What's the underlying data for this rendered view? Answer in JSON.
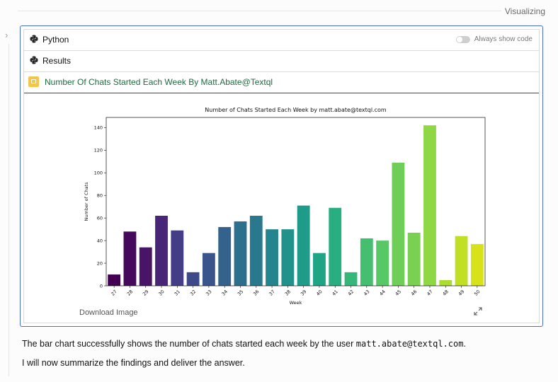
{
  "header": {
    "status": "Visualizing"
  },
  "panel": {
    "python_label": "Python",
    "results_label": "Results",
    "toggle_label": "Always show code",
    "chart_link_title": "Number Of Chats Started Each Week By Matt.Abate@Textql",
    "download_label": "Download Image"
  },
  "summary": {
    "line1_prefix": "The bar chart successfully shows the number of chats started each week by the user ",
    "line1_code": "matt.abate@textql.com",
    "line1_suffix": ".",
    "line2": "I will now summarize the findings and deliver the answer."
  },
  "chart_data": {
    "type": "bar",
    "title": "Number of Chats Started Each Week by matt.abate@textql.com",
    "xlabel": "Week",
    "ylabel": "Number of Chats",
    "categories": [
      "27",
      "28",
      "29",
      "30",
      "31",
      "32",
      "33",
      "34",
      "35",
      "36",
      "37",
      "38",
      "39",
      "40",
      "41",
      "42",
      "43",
      "44",
      "45",
      "46",
      "47",
      "48",
      "49",
      "50"
    ],
    "values": [
      10,
      48,
      34,
      62,
      49,
      12,
      29,
      52,
      57,
      62,
      50,
      50,
      71,
      29,
      69,
      12,
      42,
      40,
      109,
      47,
      142,
      5,
      44,
      37
    ],
    "ylim": [
      0,
      149
    ],
    "yticks": [
      0,
      20,
      40,
      60,
      80,
      100,
      120,
      140
    ],
    "colormap": "viridis",
    "colors": [
      "#440154",
      "#46085c",
      "#481467",
      "#482576",
      "#433e85",
      "#3e4989",
      "#39558c",
      "#33628d",
      "#2d708e",
      "#2a788e",
      "#25858e",
      "#21918c",
      "#1e9c89",
      "#20a486",
      "#28ae80",
      "#35b779",
      "#44bf70",
      "#58c765",
      "#6ece58",
      "#7ad151",
      "#8fd744",
      "#aadc32",
      "#c0df25",
      "#d8e219"
    ]
  }
}
